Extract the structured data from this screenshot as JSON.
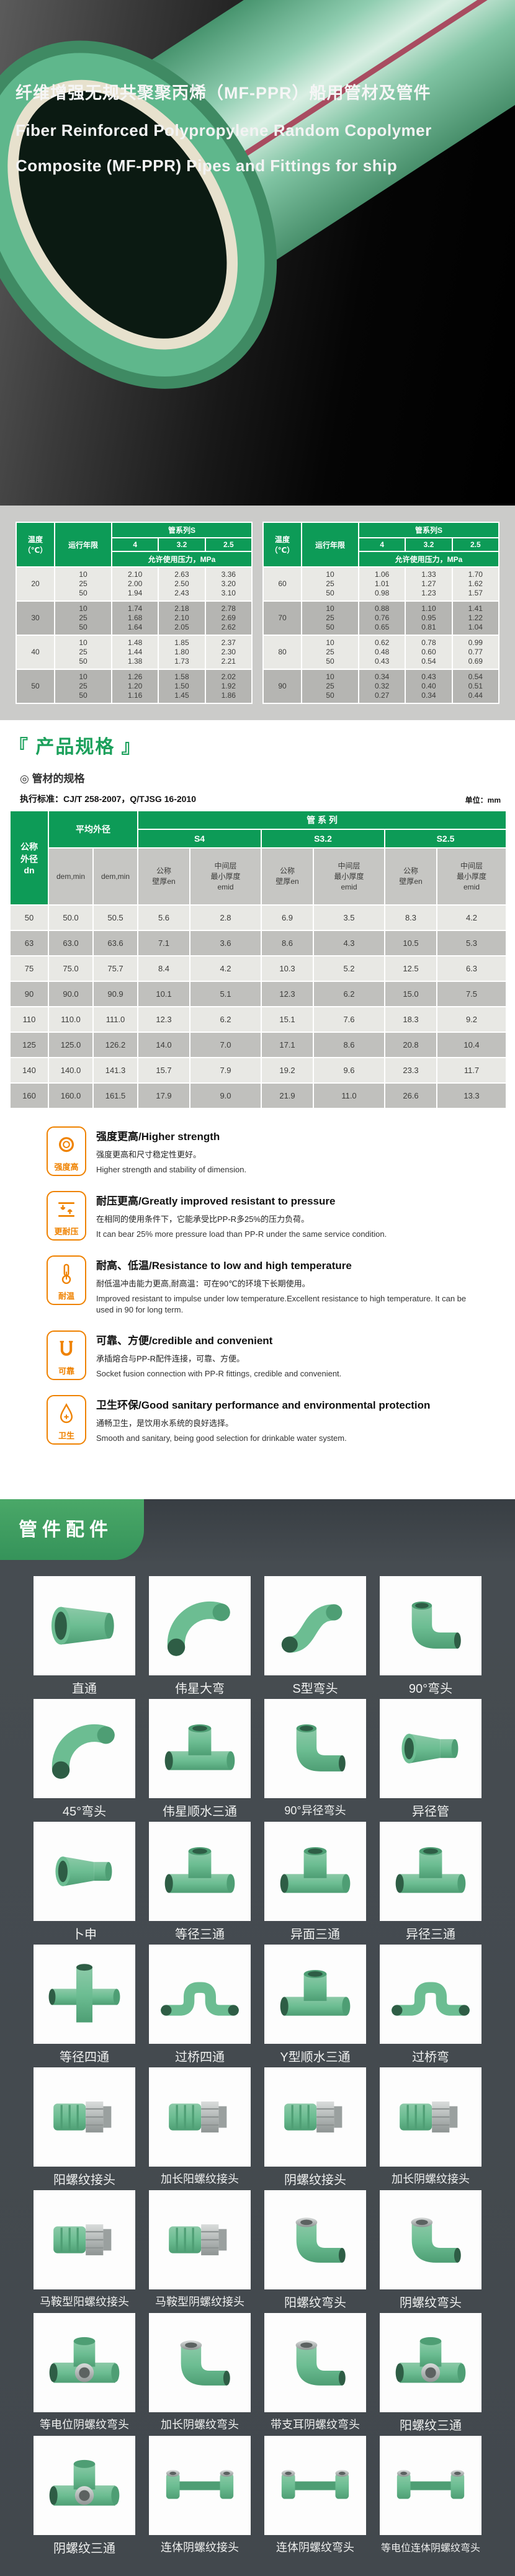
{
  "colors": {
    "table_header_green": "#0d9b57",
    "tab_green": "#4aa868",
    "feature_orange": "#ef8200",
    "dark_section_bg": "#42484d",
    "pipe_green": "#5fb78c",
    "stripe_red": "#a63c54"
  },
  "hero": {
    "title_zh": "纤维增强无规共聚聚丙烯（MF-PPR）船用管材及管件",
    "title_en1": "Fiber Reinforced Polypropylene Random Copolymer",
    "title_en2": "Composite (MF-PPR) Pipes and Fittings for ship"
  },
  "pressure_section": {
    "col_temp": "温度（℃）",
    "col_years": "运行年限",
    "col_series": "管系列S",
    "series": [
      "4",
      "3.2",
      "2.5"
    ],
    "col_pressure": "允许使用压力，MPa",
    "tables": [
      {
        "groups": [
          {
            "temp": "20",
            "rows": [
              [
                "10",
                "2.10",
                "2.63",
                "3.36"
              ],
              [
                "25",
                "2.00",
                "2.50",
                "3.20"
              ],
              [
                "50",
                "1.94",
                "2.43",
                "3.10"
              ]
            ]
          },
          {
            "temp": "30",
            "rows": [
              [
                "10",
                "1.74",
                "2.18",
                "2.78"
              ],
              [
                "25",
                "1.68",
                "2.10",
                "2.69"
              ],
              [
                "50",
                "1.64",
                "2.05",
                "2.62"
              ]
            ]
          },
          {
            "temp": "40",
            "rows": [
              [
                "10",
                "1.48",
                "1.85",
                "2.37"
              ],
              [
                "25",
                "1.44",
                "1.80",
                "2.30"
              ],
              [
                "50",
                "1.38",
                "1.73",
                "2.21"
              ]
            ]
          },
          {
            "temp": "50",
            "rows": [
              [
                "10",
                "1.26",
                "1.58",
                "2.02"
              ],
              [
                "25",
                "1.20",
                "1.50",
                "1.92"
              ],
              [
                "50",
                "1.16",
                "1.45",
                "1.86"
              ]
            ]
          }
        ]
      },
      {
        "groups": [
          {
            "temp": "60",
            "rows": [
              [
                "10",
                "1.06",
                "1.33",
                "1.70"
              ],
              [
                "25",
                "1.01",
                "1.27",
                "1.62"
              ],
              [
                "50",
                "0.98",
                "1.23",
                "1.57"
              ]
            ]
          },
          {
            "temp": "70",
            "rows": [
              [
                "10",
                "0.88",
                "1.10",
                "1.41"
              ],
              [
                "25",
                "0.76",
                "0.95",
                "1.22"
              ],
              [
                "50",
                "0.65",
                "0.81",
                "1.04"
              ]
            ]
          },
          {
            "temp": "80",
            "rows": [
              [
                "10",
                "0.62",
                "0.78",
                "0.99"
              ],
              [
                "25",
                "0.48",
                "0.60",
                "0.77"
              ],
              [
                "50",
                "0.43",
                "0.54",
                "0.69"
              ]
            ]
          },
          {
            "temp": "90",
            "rows": [
              [
                "10",
                "0.34",
                "0.43",
                "0.54"
              ],
              [
                "25",
                "0.32",
                "0.40",
                "0.51"
              ],
              [
                "50",
                "0.27",
                "0.34",
                "0.44"
              ]
            ]
          }
        ]
      }
    ]
  },
  "spec_section": {
    "title": "『 产品规格 』",
    "subsection": "◎ 管材的规格",
    "standard_label": "执行标准：CJ/T 258-2007，Q/TJSG 16-2010",
    "unit_label": "单位：mm",
    "table": {
      "col_dn_lines": [
        "公称",
        "外径",
        "dn"
      ],
      "col_avg": "平均外径",
      "col_series": "管 系 列",
      "series": [
        "S4",
        "S3.2",
        "S2.5"
      ],
      "col_dem1": "dem,min",
      "col_dem2": "dem,min",
      "col_en_lines": [
        "公称",
        "壁厚en"
      ],
      "col_emid_lines": [
        "中间层",
        "最小厚度",
        "emid"
      ],
      "rows": [
        [
          "50",
          "50.0",
          "50.5",
          "5.6",
          "2.8",
          "6.9",
          "3.5",
          "8.3",
          "4.2"
        ],
        [
          "63",
          "63.0",
          "63.6",
          "7.1",
          "3.6",
          "8.6",
          "4.3",
          "10.5",
          "5.3"
        ],
        [
          "75",
          "75.0",
          "75.7",
          "8.4",
          "4.2",
          "10.3",
          "5.2",
          "12.5",
          "6.3"
        ],
        [
          "90",
          "90.0",
          "90.9",
          "10.1",
          "5.1",
          "12.3",
          "6.2",
          "15.0",
          "7.5"
        ],
        [
          "110",
          "110.0",
          "111.0",
          "12.3",
          "6.2",
          "15.1",
          "7.6",
          "18.3",
          "9.2"
        ],
        [
          "125",
          "125.0",
          "126.2",
          "14.0",
          "7.0",
          "17.1",
          "8.6",
          "20.8",
          "10.4"
        ],
        [
          "140",
          "140.0",
          "141.3",
          "15.7",
          "7.9",
          "19.2",
          "9.6",
          "23.3",
          "11.7"
        ],
        [
          "160",
          "160.0",
          "161.5",
          "17.9",
          "9.0",
          "21.9",
          "11.0",
          "26.6",
          "13.3"
        ]
      ]
    }
  },
  "features": [
    {
      "badge": "强度高",
      "icon": "strength-icon",
      "title": "强度更高/Higher strength",
      "zh": "强度更高和尺寸稳定性更好。",
      "en": "Higher strength and stability of dimension."
    },
    {
      "badge": "更耐压",
      "icon": "pressure-icon",
      "title": "耐压更高/Greatly improved resistant to pressure",
      "zh": "在相同的使用条件下，它能承受比PP-R多25%的压力负荷。",
      "en": "It can bear 25% more pressure load than PP-R under the same service condition."
    },
    {
      "badge": "耐温",
      "icon": "temperature-icon",
      "title": "耐高、低温/Resistance to low and high temperature",
      "zh": "耐低温冲击能力更高,耐高温：可在90℃的环境下长期使用。",
      "en": "Improved resistant to impulse under low temperature.Excellent resistance to high temperature. It can be used in 90  for long term."
    },
    {
      "badge": "可靠",
      "icon": "reliable-icon",
      "title": "可靠、方便/credible and convenient",
      "zh": "承插熔合与PP-R配件连接，可靠、方便。",
      "en": "Socket fusion connection with PP-R fittings, credible and convenient."
    },
    {
      "badge": "卫生",
      "icon": "sanitary-icon",
      "title": "卫生环保/Good sanitary performance and environmental protection",
      "zh": "通畅卫生，是饮用水系统的良好选择。",
      "en": "Smooth and sanitary, being good selection for drinkable water system."
    }
  ],
  "fittings_section": {
    "tab": "管件配件",
    "items": [
      {
        "label": "直通",
        "shape": "coupling"
      },
      {
        "label": "伟星大弯",
        "shape": "bend"
      },
      {
        "label": "S型弯头",
        "shape": "sbend"
      },
      {
        "label": "90°弯头",
        "shape": "elbow"
      },
      {
        "label": "45°弯头",
        "shape": "bend"
      },
      {
        "label": "伟星顺水三通",
        "shape": "tee"
      },
      {
        "label": "90°异径弯头",
        "shape": "elbow"
      },
      {
        "label": "异径管",
        "shape": "reducer"
      },
      {
        "label": "卜申",
        "shape": "reducer"
      },
      {
        "label": "等径三通",
        "shape": "tee"
      },
      {
        "label": "异面三通",
        "shape": "tee"
      },
      {
        "label": "异径三通",
        "shape": "tee"
      },
      {
        "label": "等径四通",
        "shape": "cross"
      },
      {
        "label": "过桥四通",
        "shape": "bridge"
      },
      {
        "label": "Y型顺水三通",
        "shape": "tee"
      },
      {
        "label": "过桥弯",
        "shape": "bridge"
      },
      {
        "label": "阳螺纹接头",
        "shape": "union"
      },
      {
        "label": "加长阳螺纹接头",
        "shape": "union"
      },
      {
        "label": "阴螺纹接头",
        "shape": "union"
      },
      {
        "label": "加长阴螺纹接头",
        "shape": "union"
      },
      {
        "label": "马鞍型阳螺纹接头",
        "shape": "union"
      },
      {
        "label": "马鞍型阴螺纹接头",
        "shape": "union"
      },
      {
        "label": "阳螺纹弯头",
        "shape": "elbowm"
      },
      {
        "label": "阴螺纹弯头",
        "shape": "elbowm"
      },
      {
        "label": "等电位阴螺纹弯头",
        "shape": "teem"
      },
      {
        "label": "加长阴螺纹弯头",
        "shape": "elbowm"
      },
      {
        "label": "带支耳阴螺纹弯头",
        "shape": "elbowm"
      },
      {
        "label": "阳螺纹三通",
        "shape": "teem"
      },
      {
        "label": "阴螺纹三通",
        "shape": "teem"
      },
      {
        "label": "连体阴螺纹接头",
        "shape": "bar"
      },
      {
        "label": "连体阴螺纹弯头",
        "shape": "bar"
      },
      {
        "label": "等电位连体阴螺纹弯头",
        "shape": "bar"
      }
    ]
  }
}
